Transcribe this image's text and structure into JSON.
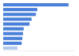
{
  "chart_data": {
    "type": "bar",
    "orientation": "horizontal",
    "categories": [
      null,
      null,
      null,
      null,
      null,
      null,
      null,
      null,
      null,
      null
    ],
    "values": [
      92,
      48,
      46,
      40,
      37,
      29,
      28,
      27,
      26,
      20
    ],
    "colors": [
      "#4a80d9",
      "#4a80d9",
      "#4a80d9",
      "#4a80d9",
      "#4a80d9",
      "#4a80d9",
      "#4a80d9",
      "#4a80d9",
      "#4a80d9",
      "#b3c9ee"
    ],
    "xlim": [
      0,
      100
    ],
    "xticks": [],
    "grid": false,
    "tick_labels": false
  }
}
